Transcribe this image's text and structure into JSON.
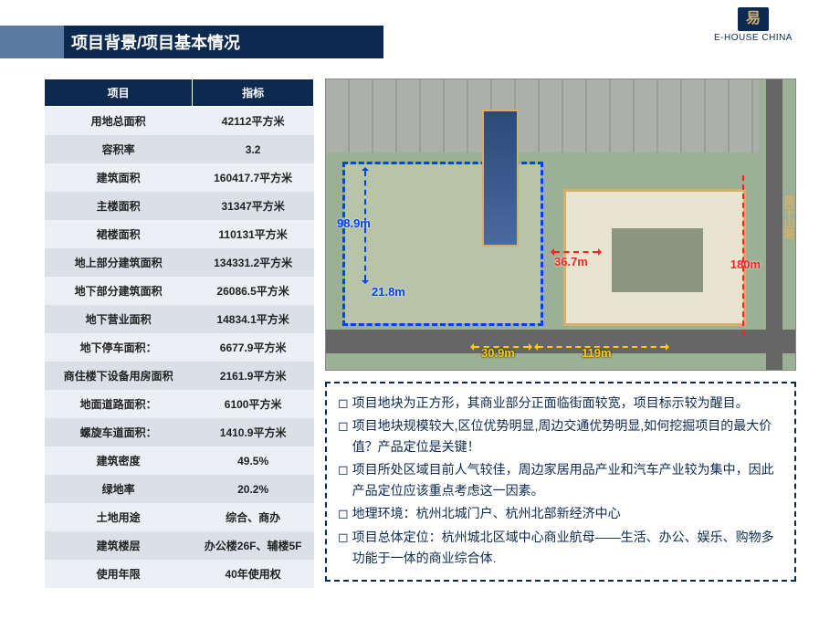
{
  "header": {
    "title": "项目背景/项目基本情况",
    "logo_text": "E-HOUSE   CHINA",
    "logo_glyph": "易"
  },
  "table": {
    "col1_header": "项目",
    "col2_header": "指标",
    "rows": [
      {
        "label": "用地总面积",
        "value": "42112平方米"
      },
      {
        "label": "容积率",
        "value": "3.2"
      },
      {
        "label": "建筑面积",
        "value": "160417.7平方米"
      },
      {
        "label": "主楼面积",
        "value": "31347平方米"
      },
      {
        "label": "裙楼面积",
        "value": "110131平方米"
      },
      {
        "label": "地上部分建筑面积",
        "value": "134331.2平方米"
      },
      {
        "label": "地下部分建筑面积",
        "value": "26086.5平方米"
      },
      {
        "label": "地下营业面积",
        "value": "14834.1平方米"
      },
      {
        "label": "地下停车面积：",
        "value": "6677.9平方米"
      },
      {
        "label": "商住楼下设备用房面积",
        "value": "2161.9平方米"
      },
      {
        "label": "地面道路面积：",
        "value": "6100平方米"
      },
      {
        "label": "螺旋车道面积：",
        "value": "1410.9平方米"
      },
      {
        "label": "建筑密度",
        "value": "49.5%"
      },
      {
        "label": "绿地率",
        "value": "20.2%"
      },
      {
        "label": "土地用途",
        "value": "综合、商办"
      },
      {
        "label": "建筑楼层",
        "value": "办公楼26F、辅楼5F"
      },
      {
        "label": "使用年限",
        "value": "40年使用权"
      }
    ]
  },
  "map": {
    "road_label": "莫干山路",
    "dims": {
      "h1": "98.9m",
      "w1": "21.8m",
      "w2": "36.7m",
      "w3": "30.9m",
      "w4": "119m",
      "east": "180m"
    }
  },
  "notes": {
    "items": [
      "项目地块为正方形，其商业部分正面临街面较宽，项目标示较为醒目。",
      "项目地块规模较大,区位优势明显,周边交通优势明显,如何挖掘项目的最大价值？产品定位是关键！",
      "项目所处区域目前人气较佳，周边家居用品产业和汽车产业较为集中，因此产品定位应该重点考虑这一因素。",
      "地理环境：杭州北城门户、杭州北部新经济中心",
      "项目总体定位：杭州城北区域中心商业航母——生活、办公、娱乐、购物多功能于一体的商业综合体."
    ]
  },
  "colors": {
    "brand_dark": "#0c2a50",
    "brand_mid": "#5a7aa0",
    "row_even": "#eceff4",
    "row_odd": "#dbe0e8",
    "dim_blue": "#0040ff",
    "dim_red": "#ff2020",
    "dim_yellow": "#ffcc00"
  }
}
